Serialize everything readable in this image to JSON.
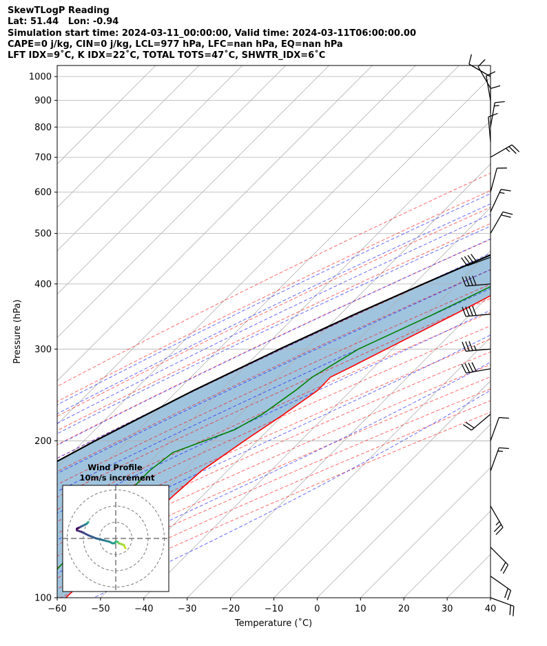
{
  "header": {
    "title": "SkewTLogP Reading",
    "location": "Lat: 51.44   Lon: -0.94",
    "times": "Simulation start time: 2024-03-11_00:00:00, Valid time: 2024-03-11T06:00:00.00",
    "parcel_info": "CAPE=0 j/kg, CIN=0 j/kg, LCL=977 hPa, LFC=nan hPa, EQ=nan hPa",
    "indices": "LFT IDX=9˚C, K IDX=22˚C, TOTAL TOTS=47˚C, SHWTR_IDX=6˚C"
  },
  "chart_data": {
    "type": "line",
    "subtype": "skew-T log-P diagram",
    "xlabel": "Temperature (˚C)",
    "ylabel": "Pressure (hPa)",
    "xlim": [
      -60,
      40
    ],
    "ylim": [
      1050,
      100
    ],
    "y_scale": "log",
    "x_ticks": [
      "−60",
      "−50",
      "−40",
      "−30",
      "−20",
      "−10",
      "0",
      "10",
      "20",
      "30",
      "40"
    ],
    "y_ticks": [
      "100",
      "200",
      "300",
      "400",
      "500",
      "600",
      "700",
      "800",
      "900",
      "1000"
    ],
    "grid": true,
    "series": [
      {
        "color": "#ff0000",
        "p": [
          1000,
          950,
          900,
          850,
          800,
          750,
          700,
          650,
          600,
          550,
          500,
          450,
          400,
          350,
          300,
          275,
          265,
          250,
          225,
          200,
          175,
          150,
          125,
          100
        ],
        "t": [
          7.5,
          6.0,
          4.8,
          3.8,
          2.2,
          -0.2,
          -2.7,
          -5.7,
          -8.8,
          -12.4,
          -16.4,
          -21.3,
          -27.1,
          -33.6,
          -41.4,
          -45.8,
          -47.8,
          -47.7,
          -50.0,
          -53.0,
          -56.0,
          -57.0,
          -57.5,
          -58.0
        ]
      },
      {
        "color": "#008000",
        "p": [
          1000,
          950,
          900,
          850,
          800,
          750,
          700,
          650,
          600,
          550,
          500,
          450,
          400,
          350,
          300,
          265,
          250,
          225,
          210,
          190,
          175,
          150,
          125,
          100
        ],
        "t": [
          6.8,
          5.3,
          4.2,
          2.6,
          -0.1,
          -4.2,
          -6.0,
          -9.0,
          -12.5,
          -16.0,
          -20.8,
          -25.9,
          -31.1,
          -38.5,
          -47.8,
          -52.0,
          -52.8,
          -55.0,
          -57.8,
          -66.8,
          -68.0,
          -67.8,
          -67.0,
          -66.0
        ]
      },
      {
        "color": "#000000",
        "p": [
          1010,
          977,
          950,
          900,
          850,
          800,
          750,
          700,
          650,
          600,
          550,
          500,
          450,
          400,
          350,
          300,
          250,
          200,
          150,
          100
        ],
        "t": [
          7.5,
          6.1,
          4.8,
          2.2,
          -0.6,
          -3.8,
          -7.3,
          -11.2,
          -15.7,
          -20.7,
          -26.3,
          -32.6,
          -39.8,
          -47.9,
          -56.7,
          -66.0,
          -76.3,
          -87.4,
          -100.3,
          -118.0
        ]
      }
    ],
    "dry_adiabats": [
      -30,
      -20,
      -10,
      0,
      10,
      20,
      30,
      40,
      50,
      60,
      70,
      80,
      90,
      100,
      110,
      120,
      130,
      140
    ],
    "moist_adiabats": [
      -20,
      -15,
      -10,
      -5,
      0,
      5,
      10,
      15,
      20,
      25,
      30,
      35
    ],
    "barbs": [
      {
        "p": 1000,
        "speed": 10,
        "dir": 300
      },
      {
        "p": 950,
        "speed": 10,
        "dir": 330
      },
      {
        "p": 900,
        "speed": 10,
        "dir": 350
      },
      {
        "p": 850,
        "speed": 10,
        "dir": 0
      },
      {
        "p": 800,
        "speed": 15,
        "dir": 10
      },
      {
        "p": 750,
        "speed": 10,
        "dir": 355
      },
      {
        "p": 700,
        "speed": 25,
        "dir": 60
      },
      {
        "p": 600,
        "speed": 10,
        "dir": 15
      },
      {
        "p": 550,
        "speed": 15,
        "dir": 25
      },
      {
        "p": 500,
        "speed": 20,
        "dir": 30
      },
      {
        "p": 450,
        "speed": 40,
        "dir": 250
      },
      {
        "p": 400,
        "speed": 40,
        "dir": 265
      },
      {
        "p": 350,
        "speed": 40,
        "dir": 265
      },
      {
        "p": 300,
        "speed": 35,
        "dir": 265
      },
      {
        "p": 275,
        "speed": 40,
        "dir": 260
      },
      {
        "p": 225,
        "speed": 20,
        "dir": 230
      },
      {
        "p": 200,
        "speed": 10,
        "dir": 20
      },
      {
        "p": 175,
        "speed": 15,
        "dir": 20
      },
      {
        "p": 150,
        "speed": 25,
        "dir": 150
      },
      {
        "p": 125,
        "speed": 20,
        "dir": 135
      },
      {
        "p": 110,
        "speed": 20,
        "dir": 125
      },
      {
        "p": 100,
        "speed": 20,
        "dir": 110
      }
    ],
    "hodograph": {
      "title": "Wind Profile",
      "subtitle": "10m/s increment",
      "u": [
        6,
        5,
        2,
        1,
        0,
        -1,
        -2,
        -4,
        -8,
        -12,
        -17,
        -21,
        -24,
        -24,
        -22,
        -20,
        -18,
        -17,
        -17
      ],
      "v": [
        6,
        4,
        3,
        2,
        2,
        3,
        3,
        2,
        1,
        0,
        -2,
        -4,
        -5,
        -6,
        -7,
        -8,
        -9,
        -10,
        -10
      ]
    }
  }
}
